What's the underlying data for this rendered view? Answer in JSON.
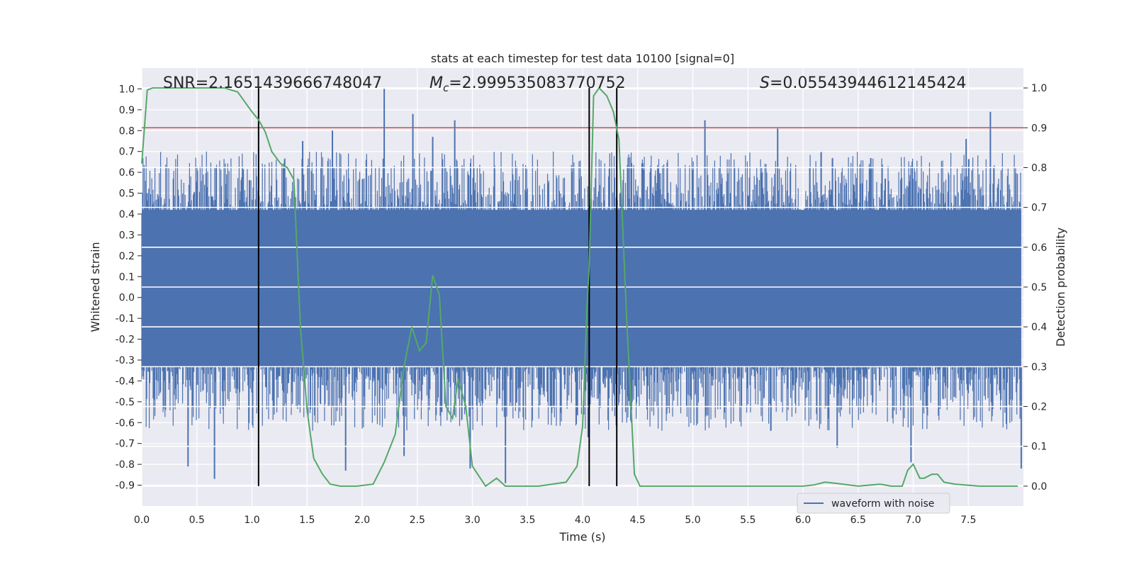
{
  "chart_data": {
    "type": "line",
    "title": "stats at each timestep for test data 10100 [signal=0]",
    "xlabel": "Time (s)",
    "ylabel": "Whitened strain",
    "y2label": "Detection probability",
    "xlim": [
      0.0,
      8.0
    ],
    "ylim": [
      -1.0,
      1.1
    ],
    "y2lim": [
      -0.05,
      1.05
    ],
    "xticks": [
      "0.0",
      "0.5",
      "1.0",
      "1.5",
      "2.0",
      "2.5",
      "3.0",
      "3.5",
      "4.0",
      "4.5",
      "5.0",
      "5.5",
      "6.0",
      "6.5",
      "7.0",
      "7.5"
    ],
    "yticks": [
      "1.0",
      "0.9",
      "0.8",
      "0.7",
      "0.6",
      "0.5",
      "0.4",
      "0.3",
      "0.2",
      "0.1",
      "0.0",
      "-0.1",
      "-0.2",
      "-0.3",
      "-0.4",
      "-0.5",
      "-0.6",
      "-0.7",
      "-0.8",
      "-0.9"
    ],
    "y2ticks": [
      "1.0",
      "0.9",
      "0.8",
      "0.7",
      "0.6",
      "0.5",
      "0.4",
      "0.3",
      "0.2",
      "0.1",
      "0.0"
    ],
    "annotations": {
      "snr": "SNR=2.1651439666748047",
      "mc_sym": "M",
      "mc_sub": "c",
      "mc_val": "=2.999535083770752",
      "s_sym": "S",
      "s_val": "=0.05543944612145424"
    },
    "threshold": 0.9,
    "vlines": [
      1.06,
      4.06,
      4.31
    ],
    "legend": {
      "label": "waveform with noise",
      "placement": "lower-right"
    },
    "colors": {
      "waveform": "#4c72b0",
      "probability": "#55a868",
      "threshold": "#c44e52",
      "vline": "#000000",
      "background": "#eaeaf2",
      "grid": "#ffffff"
    },
    "series": [
      {
        "name": "waveform with noise",
        "kind": "noise",
        "band_low": -0.33,
        "band_high": 0.42,
        "spikes": [
          {
            "x": 2.2,
            "y": 1.0
          },
          {
            "x": 2.46,
            "y": 0.88
          },
          {
            "x": 2.84,
            "y": 0.85
          },
          {
            "x": 1.73,
            "y": 0.8
          },
          {
            "x": 5.11,
            "y": 0.85
          },
          {
            "x": 5.77,
            "y": 0.81
          },
          {
            "x": 7.7,
            "y": 0.89
          },
          {
            "x": 2.64,
            "y": 0.77
          },
          {
            "x": 1.46,
            "y": 0.75
          },
          {
            "x": 7.48,
            "y": 0.76
          },
          {
            "x": 0.66,
            "y": -0.87
          },
          {
            "x": 3.3,
            "y": -0.89
          },
          {
            "x": 1.85,
            "y": -0.83
          },
          {
            "x": 6.98,
            "y": -0.79
          },
          {
            "x": 2.38,
            "y": -0.76
          },
          {
            "x": 0.42,
            "y": -0.81
          },
          {
            "x": 2.98,
            "y": -0.82
          },
          {
            "x": 4.05,
            "y": -0.67
          },
          {
            "x": 6.31,
            "y": -0.72
          },
          {
            "x": 7.98,
            "y": -0.82
          }
        ]
      },
      {
        "name": "detection probability",
        "kind": "line",
        "x": [
          0.0,
          0.05,
          0.1,
          0.2,
          0.5,
          0.75,
          0.87,
          1.0,
          1.06,
          1.12,
          1.18,
          1.26,
          1.32,
          1.38,
          1.44,
          1.5,
          1.56,
          1.64,
          1.71,
          1.8,
          1.95,
          2.1,
          2.2,
          2.3,
          2.38,
          2.45,
          2.52,
          2.58,
          2.64,
          2.7,
          2.76,
          2.82,
          2.87,
          2.94,
          3.0,
          3.12,
          3.22,
          3.3,
          3.42,
          3.6,
          3.85,
          3.95,
          4.0,
          4.04,
          4.06,
          4.1,
          4.15,
          4.22,
          4.28,
          4.33,
          4.4,
          4.47,
          4.52,
          4.56,
          4.65,
          4.9,
          5.3,
          5.7,
          6.0,
          6.1,
          6.2,
          6.3,
          6.5,
          6.7,
          6.8,
          6.9,
          6.95,
          7.0,
          7.06,
          7.1,
          7.17,
          7.22,
          7.28,
          7.38,
          7.6,
          7.8,
          7.95
        ],
        "y": [
          0.81,
          0.995,
          1.0,
          1.0,
          1.0,
          1.0,
          0.99,
          0.94,
          0.92,
          0.89,
          0.84,
          0.81,
          0.8,
          0.77,
          0.4,
          0.19,
          0.07,
          0.03,
          0.005,
          0.0,
          0.0,
          0.005,
          0.06,
          0.13,
          0.3,
          0.4,
          0.34,
          0.36,
          0.53,
          0.48,
          0.2,
          0.17,
          0.27,
          0.2,
          0.05,
          0.0,
          0.02,
          0.0,
          0.0,
          0.0,
          0.01,
          0.05,
          0.15,
          0.45,
          0.55,
          0.98,
          1.0,
          0.98,
          0.94,
          0.87,
          0.42,
          0.03,
          0.0,
          0.0,
          0.0,
          0.0,
          0.0,
          0.0,
          0.0,
          0.003,
          0.01,
          0.007,
          0.0,
          0.005,
          0.0,
          0.0,
          0.04,
          0.055,
          0.02,
          0.02,
          0.03,
          0.03,
          0.01,
          0.005,
          0.0,
          0.0,
          0.0
        ]
      }
    ]
  }
}
